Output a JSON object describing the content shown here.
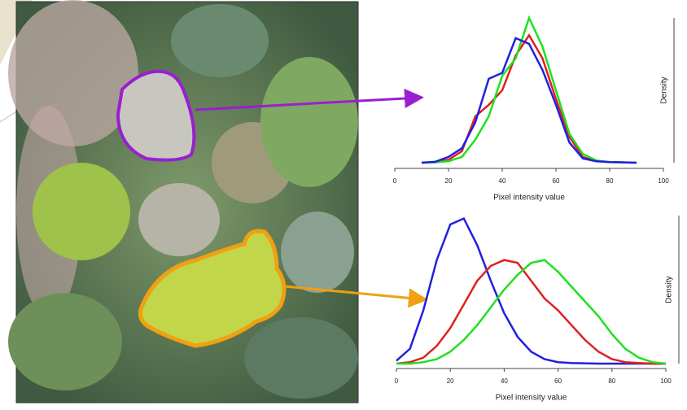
{
  "chart_data": [
    {
      "type": "line",
      "x_label": "Pixel intensity value",
      "y_label": "Density",
      "x": [
        10,
        15,
        20,
        25,
        30,
        35,
        40,
        45,
        50,
        55,
        60,
        65,
        70,
        75,
        80,
        85,
        90
      ],
      "xlim": [
        0,
        100
      ],
      "xticks": [
        0,
        20,
        40,
        60,
        80,
        100
      ],
      "ylim": [
        0,
        0.05
      ],
      "series": [
        {
          "color": "#e02020",
          "values": [
            0,
            0.0002,
            0.001,
            0.004,
            0.016,
            0.02,
            0.025,
            0.037,
            0.044,
            0.036,
            0.022,
            0.009,
            0.002,
            0.0006,
            0.0002,
            0.0001,
            0
          ]
        },
        {
          "color": "#20e020",
          "values": [
            0,
            0.0001,
            0.0005,
            0.002,
            0.008,
            0.016,
            0.03,
            0.036,
            0.05,
            0.04,
            0.025,
            0.01,
            0.003,
            0.0008,
            0.0002,
            0.0001,
            0
          ]
        },
        {
          "color": "#2020e0",
          "values": [
            0,
            0.0003,
            0.002,
            0.005,
            0.014,
            0.029,
            0.031,
            0.043,
            0.041,
            0.032,
            0.02,
            0.007,
            0.0015,
            0.0005,
            0.0002,
            0.0001,
            0
          ]
        }
      ]
    },
    {
      "type": "line",
      "x_label": "Pixel intensity value",
      "y_label": "Density",
      "x": [
        0,
        5,
        10,
        15,
        20,
        25,
        30,
        35,
        40,
        45,
        50,
        55,
        60,
        65,
        70,
        75,
        80,
        85,
        90,
        95,
        100
      ],
      "xlim": [
        0,
        100
      ],
      "xticks": [
        0,
        20,
        40,
        60,
        80,
        100
      ],
      "ylim": [
        0,
        0.05
      ],
      "series": [
        {
          "color": "#2020e0",
          "values": [
            0.001,
            0.005,
            0.018,
            0.035,
            0.047,
            0.049,
            0.04,
            0.028,
            0.017,
            0.009,
            0.004,
            0.0015,
            0.0005,
            0.0002,
            0.0001,
            0,
            0,
            0,
            0,
            0,
            0
          ]
        },
        {
          "color": "#e02020",
          "values": [
            0,
            0.0005,
            0.002,
            0.006,
            0.012,
            0.02,
            0.028,
            0.033,
            0.035,
            0.034,
            0.028,
            0.022,
            0.018,
            0.013,
            0.008,
            0.004,
            0.0015,
            0.0005,
            0.0002,
            0,
            0
          ]
        },
        {
          "color": "#20e020",
          "values": [
            0,
            0,
            0.0005,
            0.0015,
            0.004,
            0.008,
            0.013,
            0.019,
            0.025,
            0.03,
            0.034,
            0.035,
            0.031,
            0.026,
            0.021,
            0.016,
            0.01,
            0.005,
            0.002,
            0.0005,
            0
          ]
        }
      ]
    }
  ]
}
